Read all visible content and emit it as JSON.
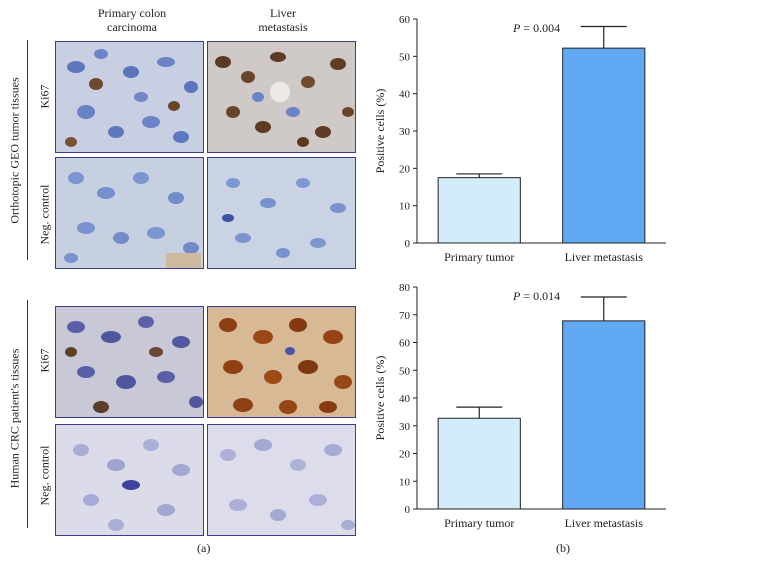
{
  "figure": {
    "panel_a_label": "(a)",
    "panel_b_label": "(b)",
    "column_headers": [
      "Primary colon\ncarcinoma",
      "Liver\nmetastasis"
    ],
    "groups": [
      {
        "name": "Orthotopic GEO tumor tissues",
        "rows": [
          "Ki67",
          "Neg. control"
        ]
      },
      {
        "name": "Human CRC patient's tissues",
        "rows": [
          "Ki67",
          "Neg. control"
        ]
      }
    ]
  },
  "chart_data": [
    {
      "type": "bar",
      "categories": [
        "Primary tumor",
        "Liver metastasis"
      ],
      "values": [
        17.5,
        52.2
      ],
      "errors": [
        1.0,
        5.8
      ],
      "ylabel": "Positive cells (%)",
      "ylim": [
        0,
        60
      ],
      "yticks": [
        0,
        10,
        20,
        30,
        40,
        50,
        60
      ],
      "annotation": "P = 0.004",
      "annotation_p": "P",
      "annotation_value": " = 0.004",
      "colors": [
        "#d2ecfa",
        "#62a9f4"
      ]
    },
    {
      "type": "bar",
      "categories": [
        "Primary tumor",
        "Liver metastasis"
      ],
      "values": [
        32.7,
        67.8
      ],
      "errors": [
        4.0,
        8.6
      ],
      "ylabel": "Positive cells (%)",
      "ylim": [
        0,
        80
      ],
      "yticks": [
        0,
        10,
        20,
        30,
        40,
        50,
        60,
        70,
        80
      ],
      "annotation": "P = 0.014",
      "annotation_p": "P",
      "annotation_value": " = 0.014",
      "colors": [
        "#d2ecfa",
        "#62a9f4"
      ]
    }
  ]
}
